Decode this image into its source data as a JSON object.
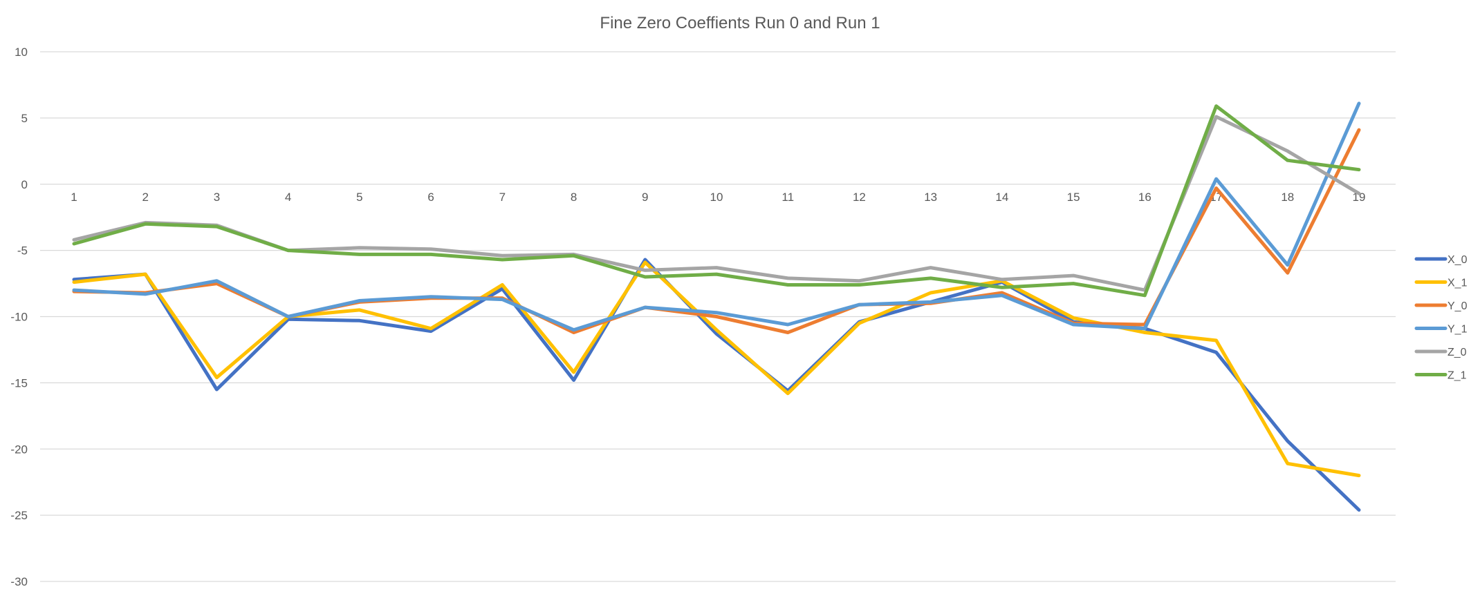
{
  "chart_data": {
    "type": "line",
    "title": "Fine Zero Coeffients Run 0 and Run 1",
    "xlabel": "",
    "ylabel": "",
    "categories": [
      "1",
      "2",
      "3",
      "4",
      "5",
      "6",
      "7",
      "8",
      "9",
      "10",
      "11",
      "12",
      "13",
      "14",
      "15",
      "16",
      "17",
      "18",
      "19"
    ],
    "ylim": [
      -30,
      10
    ],
    "yticks": [
      10,
      5,
      0,
      -5,
      -10,
      -15,
      -20,
      -25,
      -30
    ],
    "grid": true,
    "legend_position": "right",
    "series": [
      {
        "name": "X_0",
        "color": "#4472C4",
        "values": [
          -7.2,
          -6.8,
          -15.5,
          -10.2,
          -10.3,
          -11.1,
          -7.9,
          -14.8,
          -5.7,
          -11.3,
          -15.6,
          -10.4,
          -8.9,
          -7.4,
          -10.4,
          -10.9,
          -12.7,
          -19.4,
          -24.6
        ]
      },
      {
        "name": "X_1",
        "color": "#FFC000",
        "values": [
          -7.4,
          -6.8,
          -14.6,
          -10.0,
          -9.5,
          -10.9,
          -7.6,
          -14.2,
          -5.9,
          -11.0,
          -15.8,
          -10.5,
          -8.2,
          -7.3,
          -10.1,
          -11.2,
          -11.8,
          -21.1,
          -22.0
        ]
      },
      {
        "name": "Y_0",
        "color": "#ED7D31",
        "values": [
          -8.1,
          -8.2,
          -7.5,
          -10.0,
          -8.9,
          -8.6,
          -8.6,
          -11.2,
          -9.3,
          -10.0,
          -11.2,
          -9.1,
          -9.0,
          -8.2,
          -10.5,
          -10.6,
          -0.3,
          -6.7,
          4.1
        ]
      },
      {
        "name": "Y_1",
        "color": "#5B9BD5",
        "values": [
          -8.0,
          -8.3,
          -7.3,
          -10.0,
          -8.8,
          -8.5,
          -8.7,
          -11.0,
          -9.3,
          -9.7,
          -10.6,
          -9.1,
          -8.9,
          -8.4,
          -10.6,
          -10.9,
          0.4,
          -6.1,
          6.1
        ]
      },
      {
        "name": "Z_0",
        "color": "#A5A5A5",
        "values": [
          -4.2,
          -2.9,
          -3.1,
          -5.0,
          -4.8,
          -4.9,
          -5.4,
          -5.3,
          -6.5,
          -6.3,
          -7.1,
          -7.3,
          -6.3,
          -7.2,
          -6.9,
          -8.0,
          5.1,
          2.5,
          -0.7
        ]
      },
      {
        "name": "Z_1",
        "color": "#70AD47",
        "values": [
          -4.5,
          -3.0,
          -3.2,
          -5.0,
          -5.3,
          -5.3,
          -5.7,
          -5.4,
          -7.0,
          -6.8,
          -7.6,
          -7.6,
          -7.1,
          -7.8,
          -7.5,
          -8.4,
          5.9,
          1.8,
          1.1
        ]
      }
    ]
  }
}
